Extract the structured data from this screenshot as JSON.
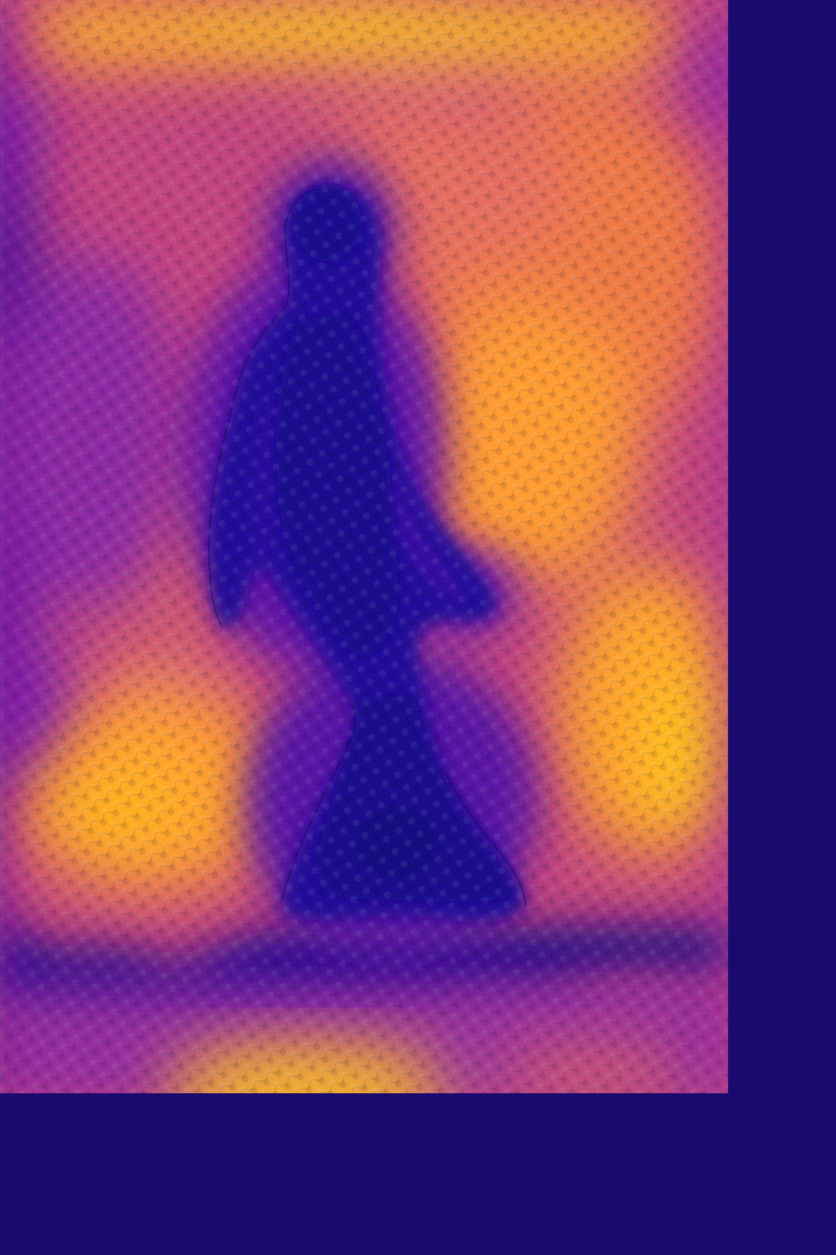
{
  "image": {
    "kind": "thermal-heatmap",
    "subject": "walking-person-silhouette",
    "palette": {
      "hot": "#ffc21a",
      "warm": "#ff9a2e",
      "mid": "#e0625e",
      "cool": "#a52fa0",
      "cold": "#5a0ea8",
      "coldest": "#1e0a8c"
    }
  }
}
